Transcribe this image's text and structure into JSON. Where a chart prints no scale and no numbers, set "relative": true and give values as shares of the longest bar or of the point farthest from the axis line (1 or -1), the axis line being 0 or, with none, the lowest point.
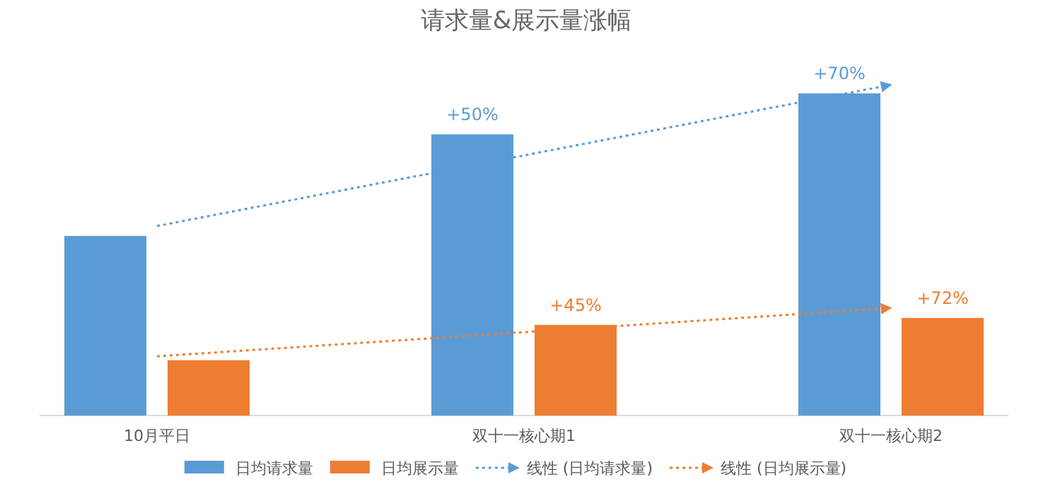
{
  "chart_data": {
    "type": "bar",
    "title": "请求量&展示量涨幅",
    "relative": true,
    "categories": [
      "10月平日",
      "双十一核心期1",
      "双十一核心期2"
    ],
    "series": [
      {
        "name": "日均请求量",
        "color": "#5b9bd5",
        "values": [
          0.543,
          0.85,
          0.974
        ]
      },
      {
        "name": "日均展示量",
        "color": "#ed7d31",
        "values": [
          0.167,
          0.274,
          0.295
        ]
      },
      {
        "name": "线性 (日均请求量)",
        "type": "line",
        "color": "#5b9bd5",
        "x": [
          "10月平日",
          "双十一核心期2"
        ],
        "values": [
          0.573,
          1.0
        ]
      },
      {
        "name": "线性 (日均展示量)",
        "type": "line",
        "color": "#ed7d31",
        "x": [
          "10月平日",
          "双十一核心期2"
        ],
        "values": [
          0.179,
          0.325
        ]
      }
    ],
    "line_style": "dotted",
    "legend": "bottom",
    "annotations": [
      "+50%",
      "+70%",
      "+45%",
      "+72%"
    ]
  }
}
